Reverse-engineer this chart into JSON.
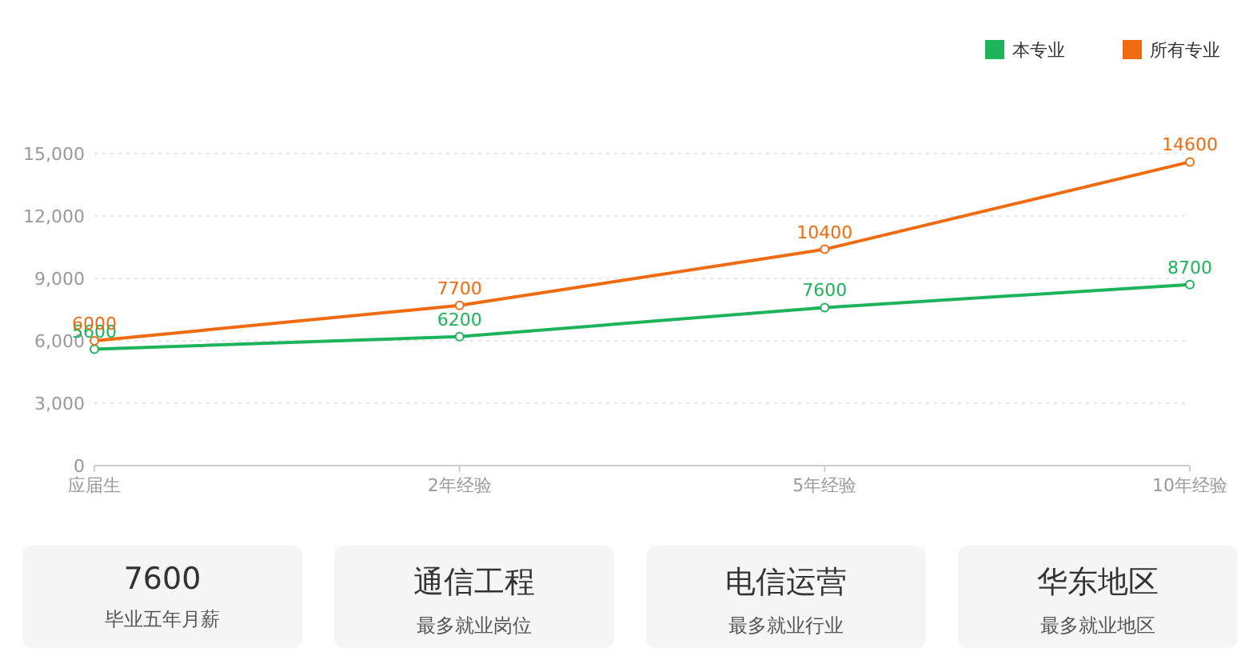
{
  "chart_data": [
    {
      "type": "line",
      "categories": [
        "应届生",
        "2年经验",
        "5年经验",
        "10年经验"
      ],
      "series": [
        {
          "name": "本专业",
          "color": "#1db35a",
          "values": [
            5600,
            6200,
            7600,
            8700
          ]
        },
        {
          "name": "所有专业",
          "color": "#f06a0f",
          "values": [
            6000,
            7700,
            10400,
            14600
          ]
        }
      ],
      "ylim": [
        0,
        15000
      ],
      "yticks": [
        0,
        {
          "value": 3000,
          "label": "3,000"
        },
        {
          "value": 6000,
          "label": "6,000"
        },
        {
          "value": 9000,
          "label": "9,000"
        },
        {
          "value": 12000,
          "label": "12,000"
        },
        {
          "value": 15000,
          "label": "15,000"
        }
      ],
      "grid": "y",
      "legend": "top right",
      "marker": "circle",
      "line_style": "solid",
      "data_labels": true
    },
    {
      "type": "other",
      "title": "7600",
      "subtitle": "毕业五年月薪"
    },
    {
      "type": "other",
      "title": "通信工程",
      "subtitle": "最多就业岗位"
    },
    {
      "type": "other",
      "title": "电信运营",
      "subtitle": "最多就业行业"
    },
    {
      "type": "other",
      "title": "华东地区",
      "subtitle": "最多就业地区"
    }
  ]
}
